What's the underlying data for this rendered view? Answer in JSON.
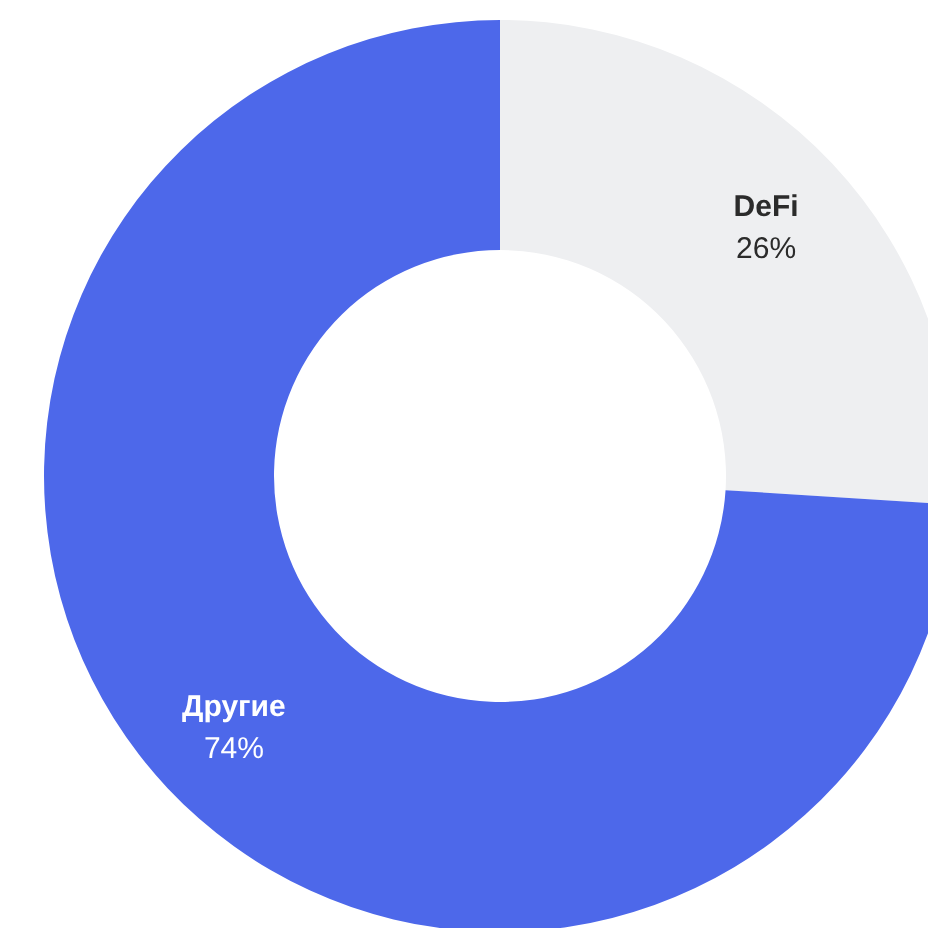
{
  "chart_data": {
    "type": "donut",
    "categories": [
      "DeFi",
      "Другие"
    ],
    "values": [
      26,
      74
    ],
    "value_labels": [
      "26%",
      "74%"
    ],
    "colors": [
      "#eeeff1",
      "#4d68ea"
    ]
  }
}
